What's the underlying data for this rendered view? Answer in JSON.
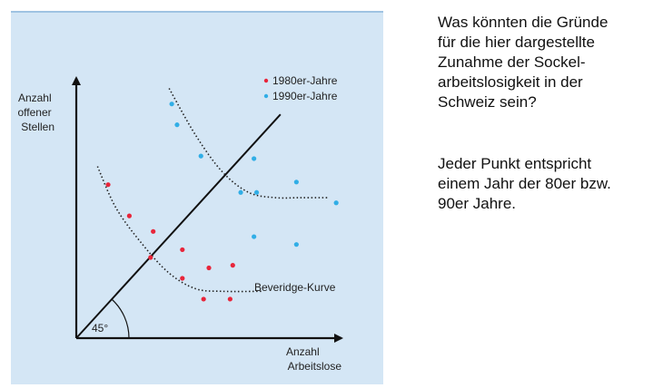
{
  "side": {
    "question": "Was könnten die Gründe\nfür die hier dargestellte\nZunahme der Sockel-\narbeitslosigkeit in der\nSchweiz sein?",
    "explanation": "Jeder Punkt entspricht\neinem Jahr der 80er bzw.\n90er Jahre."
  },
  "chart_data": {
    "type": "scatter",
    "title": "",
    "xlabel": "Anzahl Arbeitslose",
    "ylabel": "Anzahl offener Stellen",
    "xlabel_lines": [
      "Anzahl",
      "Arbeitslose"
    ],
    "ylabel_lines": [
      "Anzahl",
      "offener",
      "Stellen"
    ],
    "xlim": [
      0,
      100
    ],
    "ylim": [
      0,
      100
    ],
    "grid": false,
    "legend_position": "top-right",
    "angle_label": "45°",
    "curve_label": "Beveridge-Kurve",
    "series": [
      {
        "name": "1980er-Jahre",
        "color": "#e8253a",
        "x": [
          12,
          20,
          29,
          28,
          40,
          40,
          50,
          59,
          48,
          58
        ],
        "y": [
          59,
          47,
          41,
          31,
          34,
          23,
          27,
          28,
          15,
          15
        ]
      },
      {
        "name": "1990er-Jahre",
        "color": "#31aee6",
        "x": [
          36,
          38,
          47,
          67,
          62,
          68,
          67,
          83,
          83,
          98
        ],
        "y": [
          90,
          82,
          70,
          69,
          56,
          56,
          39,
          60,
          36,
          52
        ]
      }
    ],
    "curves": [
      {
        "name": "1980s curve",
        "x": [
          8,
          15,
          25,
          35,
          45,
          55,
          70
        ],
        "y": [
          66,
          50,
          36,
          25,
          19,
          18,
          18
        ]
      },
      {
        "name": "1990s curve",
        "x": [
          35,
          45,
          55,
          65,
          75,
          85,
          95
        ],
        "y": [
          96,
          78,
          64,
          56,
          54,
          54,
          54
        ]
      }
    ],
    "diagonal": {
      "x": [
        0,
        77
      ],
      "y": [
        0,
        86
      ]
    }
  }
}
